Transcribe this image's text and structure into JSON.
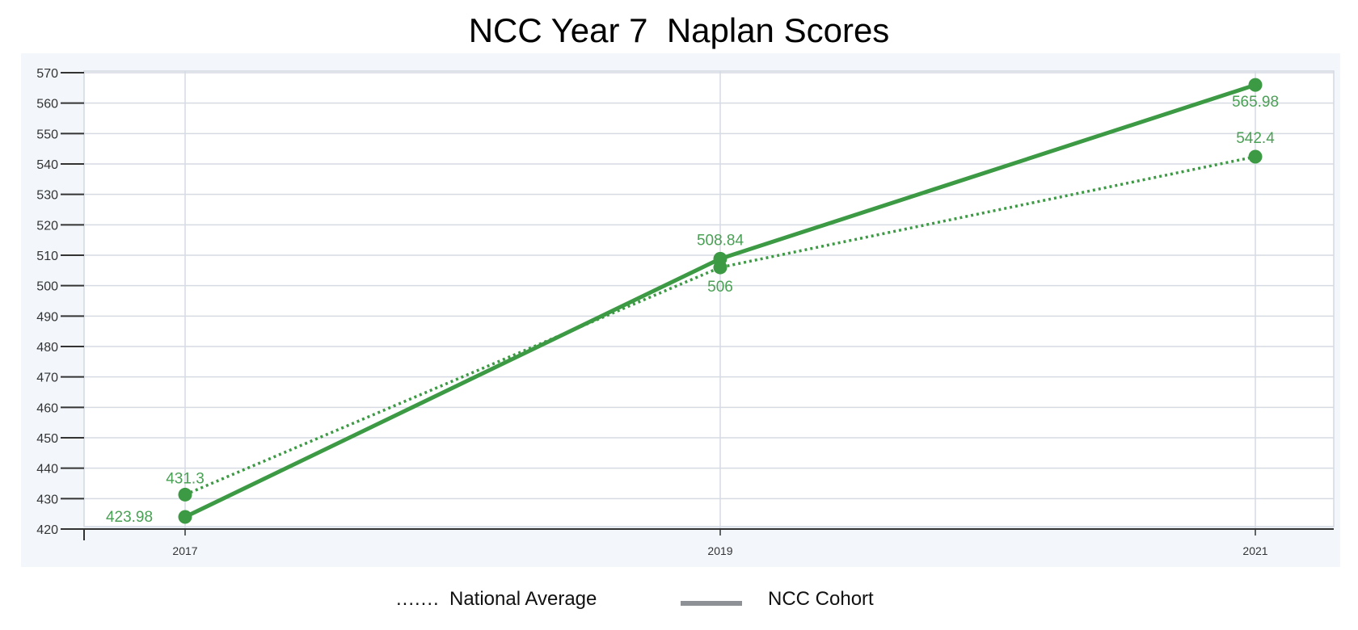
{
  "chart_data": {
    "type": "line",
    "title": "NCC Year 7  Naplan Scores",
    "xlabel": "",
    "ylabel": "",
    "categories": [
      "2017",
      "2019",
      "2021"
    ],
    "ylim": [
      420,
      570
    ],
    "yticks": [
      420,
      430,
      440,
      450,
      460,
      470,
      480,
      490,
      500,
      510,
      520,
      530,
      540,
      550,
      560,
      570
    ],
    "grid": true,
    "legend_position": "bottom",
    "series": [
      {
        "name": "National Average",
        "style": "dotted",
        "color": "#3d9a44",
        "values": [
          431.3,
          506,
          542.4
        ],
        "labels": [
          "431.3",
          "506",
          "542.4"
        ]
      },
      {
        "name": "NCC Cohort",
        "style": "solid",
        "color": "#3d9a44",
        "values": [
          423.98,
          508.84,
          565.98
        ],
        "labels": [
          "423.98",
          "508.84",
          "565.98"
        ]
      }
    ]
  },
  "legend": {
    "national_marker": ".......",
    "national_label": "National Average",
    "ncc_label": "NCC Cohort",
    "ncc_marker_color": "#8e9296"
  }
}
